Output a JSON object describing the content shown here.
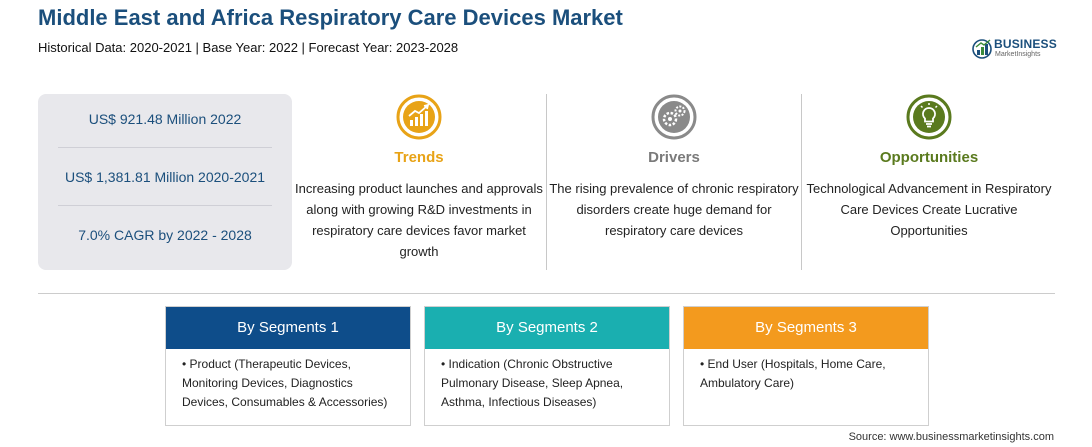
{
  "header": {
    "title": "Middle East and Africa Respiratory Care Devices Market",
    "subtitle": "Historical Data: 2020-2021 | Base Year: 2022 | Forecast Year: 2023-2028"
  },
  "logo": {
    "name": "BUSINESS",
    "tagline": "MarketInsights"
  },
  "stats": [
    "US$ 921.48 Million 2022",
    "US$ 1,381.81 Million 2020-2021",
    "7.0% CAGR by 2022 - 2028"
  ],
  "columns": [
    {
      "heading": "Trends",
      "icon": "trend-chart-icon",
      "color": "#e8a317",
      "text": "Increasing product launches and approvals along with growing R&D investments in respiratory care devices favor market growth"
    },
    {
      "heading": "Drivers",
      "icon": "gears-icon",
      "color": "#8a8a8a",
      "text": "The rising prevalence of chronic respiratory disorders create huge demand for respiratory care devices"
    },
    {
      "heading": "Opportunities",
      "icon": "lightbulb-icon",
      "color": "#5a7a1e",
      "text": "Technological Advancement in Respiratory Care Devices Create Lucrative Opportunities"
    }
  ],
  "segments": [
    {
      "title": "By Segments 1",
      "color": "#0e4d8a",
      "text": "• Product (Therapeutic Devices, Monitoring Devices, Diagnostics Devices, Consumables & Accessories)"
    },
    {
      "title": "By Segments 2",
      "color": "#1aafb0",
      "text": "• Indication (Chronic Obstructive Pulmonary Disease, Sleep Apnea, Asthma, Infectious Diseases)"
    },
    {
      "title": "By Segments 3",
      "color": "#f39a1e",
      "text": "• End User (Hospitals, Home Care, Ambulatory Care)"
    }
  ],
  "source": "Source: www.businessmarketinsights.com"
}
